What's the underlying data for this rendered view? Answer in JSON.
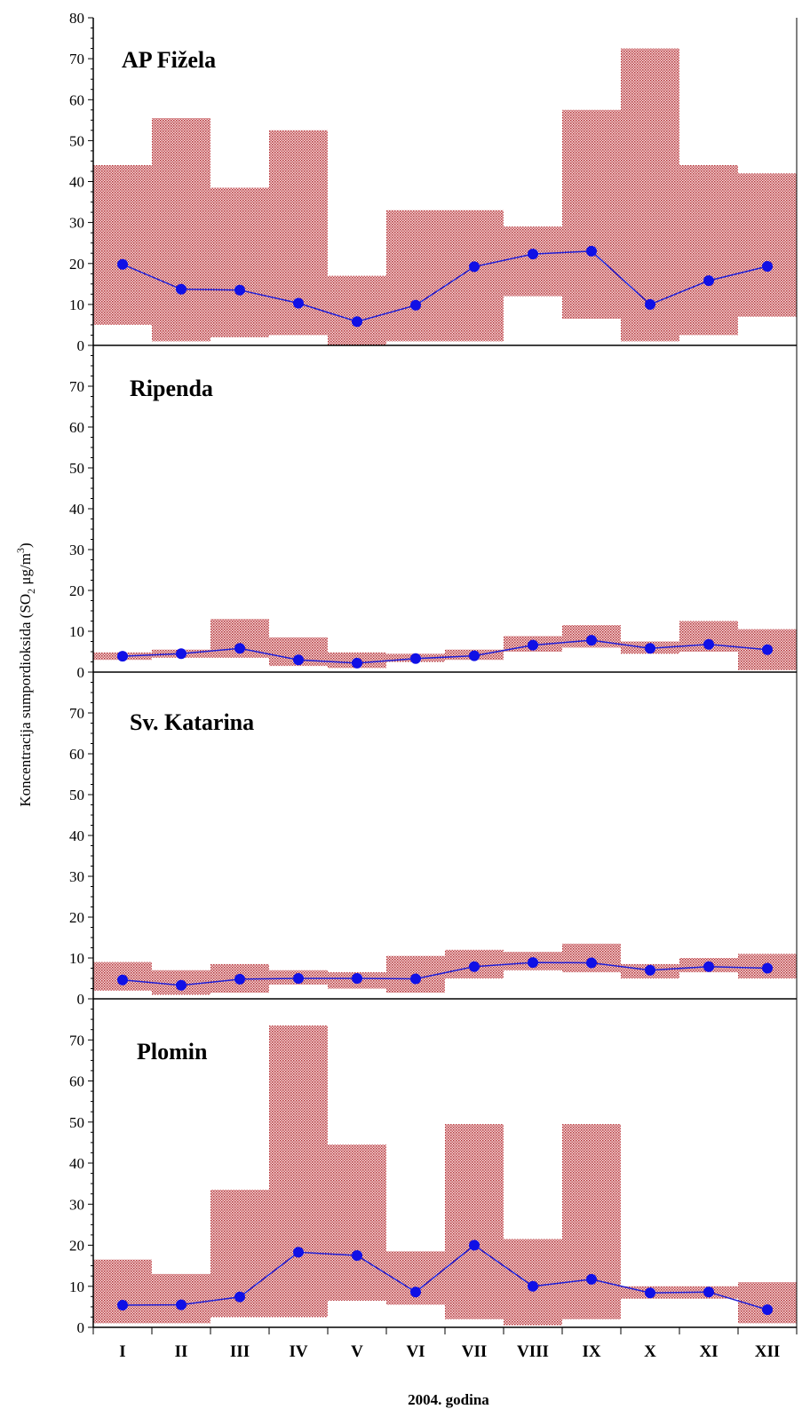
{
  "chart_data": {
    "type": "line",
    "xlabel": "2004. godina",
    "ylabel_main": "Koncentracija sumpordioksida (SO",
    "ylabel_sub": "2",
    "ylabel_mid": " μg/m",
    "ylabel_sup": "3",
    "ylabel_end": ")",
    "categories": [
      "I",
      "II",
      "III",
      "IV",
      "V",
      "VI",
      "VII",
      "VIII",
      "IX",
      "X",
      "XI",
      "XII"
    ],
    "colors": {
      "line": "#1f1fd6",
      "marker": "#1010e6",
      "range_fill": "#b0242a",
      "axis": "#000000"
    },
    "panels": [
      {
        "title": "AP Fižela",
        "ylim": [
          0,
          80
        ],
        "yticks": [
          0,
          10,
          20,
          30,
          40,
          50,
          60,
          70,
          80
        ],
        "mean": [
          19.8,
          13.7,
          13.5,
          10.3,
          5.8,
          9.8,
          19.2,
          22.3,
          23.0,
          10.0,
          15.8,
          19.3
        ],
        "min": [
          5,
          1,
          2,
          2.5,
          0,
          1,
          1,
          12,
          6.5,
          1,
          2.5,
          7
        ],
        "max": [
          44,
          55.5,
          38.5,
          52.5,
          17,
          33,
          33,
          29,
          57.5,
          72.5,
          44,
          42
        ]
      },
      {
        "title": "Ripenda",
        "ylim": [
          0,
          80
        ],
        "yticks": [
          0,
          10,
          20,
          30,
          40,
          50,
          60,
          70
        ],
        "mean": [
          3.9,
          4.5,
          5.8,
          3.0,
          2.2,
          3.3,
          4.0,
          6.6,
          7.8,
          5.8,
          6.8,
          5.5
        ],
        "min": [
          3,
          3.5,
          3.5,
          1.5,
          1,
          2.5,
          3,
          5,
          6,
          4.5,
          5,
          0.5
        ],
        "max": [
          4.8,
          5.5,
          13,
          8.5,
          4.8,
          4.5,
          5.5,
          8.8,
          11.5,
          7.5,
          12.5,
          10.5
        ]
      },
      {
        "title": "Sv. Katarina",
        "ylim": [
          0,
          80
        ],
        "yticks": [
          0,
          10,
          20,
          30,
          40,
          50,
          60,
          70
        ],
        "mean": [
          4.6,
          3.3,
          4.8,
          5.0,
          5.0,
          4.9,
          7.9,
          8.9,
          8.8,
          7.0,
          7.9,
          7.5
        ],
        "min": [
          2,
          1,
          1.5,
          3.5,
          2.5,
          1.5,
          5,
          7,
          6.5,
          5,
          6.5,
          5
        ],
        "max": [
          9,
          7,
          8.5,
          7,
          6.5,
          10.5,
          12,
          11.5,
          13.5,
          8.5,
          10,
          11
        ]
      },
      {
        "title": "Plomin",
        "ylim": [
          0,
          80
        ],
        "yticks": [
          0,
          10,
          20,
          30,
          40,
          50,
          60,
          70
        ],
        "mean": [
          5.4,
          5.5,
          7.4,
          18.3,
          17.5,
          8.6,
          20.0,
          10.0,
          11.7,
          8.4,
          8.6,
          4.3
        ],
        "min": [
          1,
          1,
          2.5,
          2.5,
          6.5,
          5.5,
          2,
          0.5,
          2,
          7,
          7,
          1
        ],
        "max": [
          16.5,
          13,
          33.5,
          73.5,
          44.5,
          18.5,
          49.5,
          21.5,
          49.5,
          10,
          10,
          11
        ]
      }
    ]
  }
}
